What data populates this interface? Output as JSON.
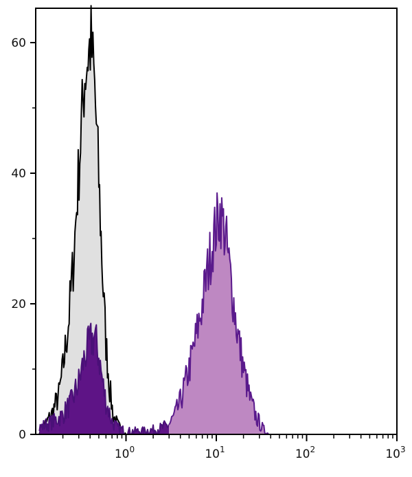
{
  "chart_data": {
    "type": "area",
    "title": "",
    "xlabel": "",
    "ylabel": "",
    "x_scale": "log",
    "xlim": [
      0.1,
      1000
    ],
    "ylim": [
      0,
      65
    ],
    "grid": false,
    "legend": "none",
    "x_ticks": [
      {
        "value": 1,
        "base": "10",
        "exp": "0"
      },
      {
        "value": 10,
        "base": "10",
        "exp": "1"
      },
      {
        "value": 100,
        "base": "10",
        "exp": "2"
      },
      {
        "value": 1000,
        "base": "10",
        "exp": "3"
      }
    ],
    "y_ticks": [
      {
        "value": 0,
        "label": "0"
      },
      {
        "value": 20,
        "label": "20"
      },
      {
        "value": 40,
        "label": "40"
      },
      {
        "value": 60,
        "label": "60"
      }
    ],
    "y_minor_ticks": [
      10,
      30,
      50
    ],
    "series": [
      {
        "fill": "#e0e0e0",
        "stroke": "#000000",
        "x": [
          0.11,
          0.12,
          0.15,
          0.18,
          0.2,
          0.23,
          0.26,
          0.29,
          0.32,
          0.35,
          0.38,
          0.41,
          0.44,
          0.48,
          0.52,
          0.56,
          0.6,
          0.66,
          0.72,
          0.8,
          0.9,
          1.0
        ],
        "y": [
          0,
          1,
          3,
          6,
          10,
          17,
          26,
          37,
          47,
          55,
          58,
          60,
          55,
          45,
          33,
          22,
          14,
          7,
          3,
          1.5,
          0.5,
          0
        ]
      },
      {
        "fill": "#5e1486",
        "stroke": "#4a1078",
        "x": [
          0.11,
          0.13,
          0.16,
          0.2,
          0.25,
          0.3,
          0.35,
          0.4,
          0.45,
          0.5,
          0.55,
          0.6,
          0.7,
          0.8,
          1.0,
          1.5,
          2.0,
          2.5,
          3.0
        ],
        "y": [
          1,
          1.5,
          2,
          3,
          5,
          8,
          12,
          14,
          15,
          12,
          8,
          5,
          2,
          1,
          0.5,
          0.5,
          0.7,
          1,
          1.5
        ]
      },
      {
        "fill": "#be88c2",
        "stroke": "#5a1a8c",
        "x": [
          3.0,
          3.5,
          4,
          5,
          6,
          7,
          8,
          9,
          10,
          11,
          12,
          13,
          15,
          17,
          20,
          24,
          28,
          33,
          38
        ],
        "y": [
          1.5,
          3,
          5,
          10,
          15,
          20,
          25,
          29,
          32,
          34,
          32,
          29,
          22,
          16,
          10,
          5,
          2.5,
          0.8,
          0
        ]
      }
    ]
  }
}
